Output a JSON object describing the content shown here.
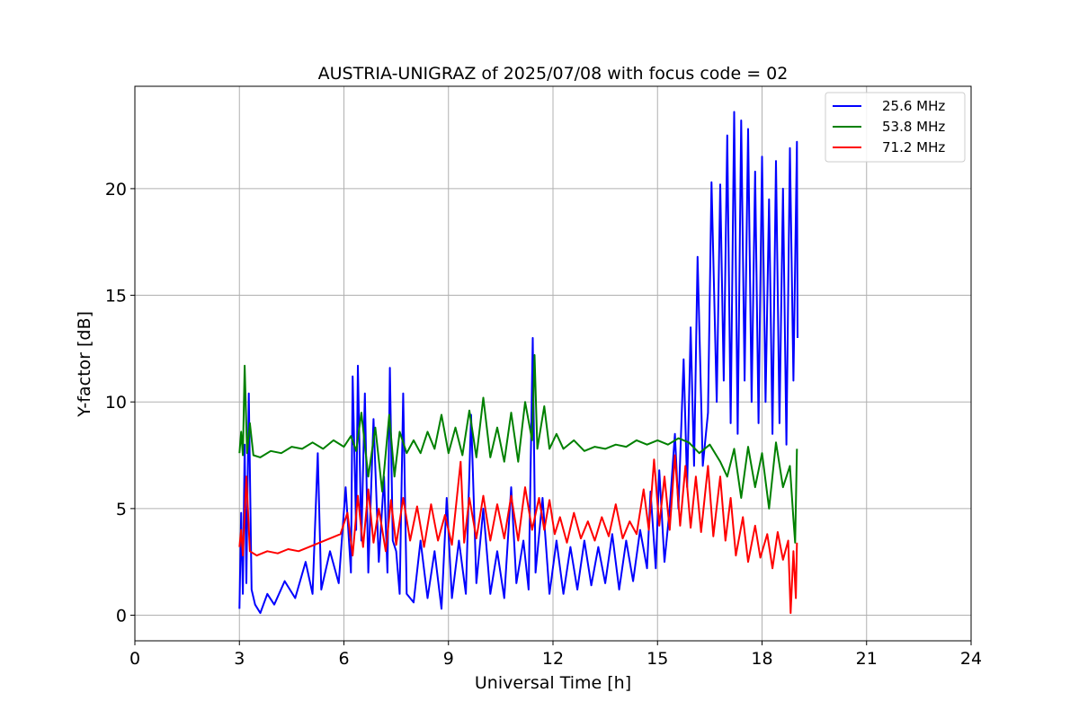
{
  "chart_data": {
    "type": "line",
    "title": "AUSTRIA-UNIGRAZ of 2025/07/08 with focus code = 02",
    "xlabel": "Universal Time [h]",
    "ylabel": "Y-factor [dB]",
    "xlim": [
      0,
      24
    ],
    "ylim": [
      -1.2,
      24.8
    ],
    "xticks": [
      0,
      3,
      6,
      9,
      12,
      15,
      18,
      21,
      24
    ],
    "yticks": [
      0,
      5,
      10,
      15,
      20
    ],
    "grid": true,
    "legend_position": "top-right",
    "series": [
      {
        "name": "25.6 MHz",
        "color": "#0000ff",
        "points": [
          [
            3.0,
            0.3
          ],
          [
            3.05,
            4.8
          ],
          [
            3.1,
            1.0
          ],
          [
            3.15,
            8.0
          ],
          [
            3.2,
            1.5
          ],
          [
            3.27,
            10.4
          ],
          [
            3.35,
            1.2
          ],
          [
            3.45,
            0.5
          ],
          [
            3.6,
            0.1
          ],
          [
            3.8,
            1.0
          ],
          [
            4.0,
            0.5
          ],
          [
            4.3,
            1.6
          ],
          [
            4.6,
            0.8
          ],
          [
            4.9,
            2.5
          ],
          [
            5.1,
            1.0
          ],
          [
            5.25,
            7.6
          ],
          [
            5.35,
            1.2
          ],
          [
            5.6,
            3.0
          ],
          [
            5.85,
            1.5
          ],
          [
            6.05,
            6.0
          ],
          [
            6.2,
            2.0
          ],
          [
            6.25,
            11.2
          ],
          [
            6.35,
            4.0
          ],
          [
            6.4,
            11.7
          ],
          [
            6.5,
            3.5
          ],
          [
            6.6,
            10.4
          ],
          [
            6.7,
            2.0
          ],
          [
            6.85,
            9.2
          ],
          [
            7.0,
            2.5
          ],
          [
            7.15,
            6.5
          ],
          [
            7.25,
            2.0
          ],
          [
            7.32,
            11.6
          ],
          [
            7.4,
            3.5
          ],
          [
            7.5,
            3.0
          ],
          [
            7.6,
            1.0
          ],
          [
            7.7,
            10.4
          ],
          [
            7.8,
            1.0
          ],
          [
            8.0,
            0.6
          ],
          [
            8.2,
            3.5
          ],
          [
            8.4,
            0.8
          ],
          [
            8.6,
            3.0
          ],
          [
            8.8,
            0.3
          ],
          [
            8.95,
            5.5
          ],
          [
            9.1,
            0.8
          ],
          [
            9.3,
            3.5
          ],
          [
            9.5,
            1.0
          ],
          [
            9.65,
            9.4
          ],
          [
            9.8,
            1.5
          ],
          [
            10.0,
            5.0
          ],
          [
            10.2,
            1.0
          ],
          [
            10.4,
            3.0
          ],
          [
            10.6,
            0.8
          ],
          [
            10.8,
            6.0
          ],
          [
            10.95,
            1.5
          ],
          [
            11.15,
            3.5
          ],
          [
            11.3,
            1.2
          ],
          [
            11.42,
            13.0
          ],
          [
            11.5,
            2.0
          ],
          [
            11.7,
            5.5
          ],
          [
            11.9,
            1.0
          ],
          [
            12.1,
            3.5
          ],
          [
            12.3,
            1.0
          ],
          [
            12.5,
            3.2
          ],
          [
            12.7,
            1.2
          ],
          [
            12.9,
            3.5
          ],
          [
            13.1,
            1.4
          ],
          [
            13.3,
            3.2
          ],
          [
            13.5,
            1.5
          ],
          [
            13.7,
            3.8
          ],
          [
            13.9,
            1.2
          ],
          [
            14.1,
            3.5
          ],
          [
            14.3,
            1.6
          ],
          [
            14.5,
            4.0
          ],
          [
            14.7,
            2.2
          ],
          [
            14.8,
            5.8
          ],
          [
            14.95,
            2.2
          ],
          [
            15.05,
            6.8
          ],
          [
            15.2,
            2.5
          ],
          [
            15.35,
            5.0
          ],
          [
            15.5,
            8.5
          ],
          [
            15.6,
            5.0
          ],
          [
            15.75,
            12.0
          ],
          [
            15.85,
            6.0
          ],
          [
            15.95,
            13.5
          ],
          [
            16.05,
            7.0
          ],
          [
            16.15,
            16.8
          ],
          [
            16.3,
            7.0
          ],
          [
            16.45,
            9.5
          ],
          [
            16.55,
            20.3
          ],
          [
            16.7,
            10.0
          ],
          [
            16.8,
            20.2
          ],
          [
            16.9,
            11.0
          ],
          [
            17.0,
            22.5
          ],
          [
            17.1,
            9.0
          ],
          [
            17.2,
            23.6
          ],
          [
            17.3,
            8.5
          ],
          [
            17.4,
            23.2
          ],
          [
            17.5,
            11.0
          ],
          [
            17.6,
            22.8
          ],
          [
            17.7,
            10.0
          ],
          [
            17.8,
            20.8
          ],
          [
            17.9,
            9.0
          ],
          [
            18.0,
            21.5
          ],
          [
            18.1,
            10.0
          ],
          [
            18.2,
            19.5
          ],
          [
            18.3,
            8.5
          ],
          [
            18.4,
            21.3
          ],
          [
            18.5,
            9.0
          ],
          [
            18.6,
            20.0
          ],
          [
            18.7,
            8.0
          ],
          [
            18.8,
            21.9
          ],
          [
            18.9,
            11.0
          ],
          [
            19.0,
            22.2
          ],
          [
            19.02,
            13.0
          ]
        ]
      },
      {
        "name": "53.8 MHz",
        "color": "#008000",
        "points": [
          [
            3.0,
            7.6
          ],
          [
            3.05,
            8.6
          ],
          [
            3.1,
            7.5
          ],
          [
            3.15,
            11.7
          ],
          [
            3.22,
            7.6
          ],
          [
            3.3,
            9.0
          ],
          [
            3.4,
            7.5
          ],
          [
            3.6,
            7.4
          ],
          [
            3.9,
            7.7
          ],
          [
            4.2,
            7.6
          ],
          [
            4.5,
            7.9
          ],
          [
            4.8,
            7.8
          ],
          [
            5.1,
            8.1
          ],
          [
            5.4,
            7.8
          ],
          [
            5.7,
            8.2
          ],
          [
            6.0,
            7.9
          ],
          [
            6.2,
            8.4
          ],
          [
            6.35,
            7.7
          ],
          [
            6.5,
            9.5
          ],
          [
            6.7,
            6.5
          ],
          [
            6.9,
            8.8
          ],
          [
            7.1,
            5.8
          ],
          [
            7.3,
            9.4
          ],
          [
            7.45,
            6.5
          ],
          [
            7.6,
            8.6
          ],
          [
            7.8,
            7.6
          ],
          [
            8.0,
            8.2
          ],
          [
            8.2,
            7.6
          ],
          [
            8.4,
            8.6
          ],
          [
            8.6,
            7.8
          ],
          [
            8.8,
            9.4
          ],
          [
            9.0,
            7.6
          ],
          [
            9.2,
            8.8
          ],
          [
            9.4,
            7.5
          ],
          [
            9.6,
            9.6
          ],
          [
            9.8,
            7.4
          ],
          [
            10.0,
            10.2
          ],
          [
            10.2,
            7.4
          ],
          [
            10.4,
            8.8
          ],
          [
            10.6,
            7.2
          ],
          [
            10.8,
            9.5
          ],
          [
            11.0,
            7.2
          ],
          [
            11.2,
            10.0
          ],
          [
            11.4,
            8.2
          ],
          [
            11.47,
            12.2
          ],
          [
            11.55,
            7.8
          ],
          [
            11.75,
            9.8
          ],
          [
            11.9,
            7.8
          ],
          [
            12.1,
            8.5
          ],
          [
            12.3,
            7.8
          ],
          [
            12.6,
            8.2
          ],
          [
            12.9,
            7.7
          ],
          [
            13.2,
            7.9
          ],
          [
            13.5,
            7.8
          ],
          [
            13.8,
            8.0
          ],
          [
            14.1,
            7.9
          ],
          [
            14.4,
            8.2
          ],
          [
            14.7,
            8.0
          ],
          [
            15.0,
            8.2
          ],
          [
            15.3,
            8.0
          ],
          [
            15.6,
            8.3
          ],
          [
            15.9,
            8.1
          ],
          [
            16.2,
            7.6
          ],
          [
            16.5,
            8.0
          ],
          [
            16.8,
            7.2
          ],
          [
            17.0,
            6.5
          ],
          [
            17.2,
            7.8
          ],
          [
            17.4,
            5.5
          ],
          [
            17.6,
            7.9
          ],
          [
            17.8,
            6.0
          ],
          [
            18.0,
            7.6
          ],
          [
            18.2,
            5.0
          ],
          [
            18.4,
            8.1
          ],
          [
            18.6,
            6.0
          ],
          [
            18.8,
            7.0
          ],
          [
            18.9,
            4.5
          ],
          [
            18.95,
            3.4
          ],
          [
            19.0,
            7.8
          ]
        ]
      },
      {
        "name": "71.2 MHz",
        "color": "#ff0000",
        "points": [
          [
            3.0,
            3.2
          ],
          [
            3.05,
            4.0
          ],
          [
            3.1,
            2.8
          ],
          [
            3.2,
            6.5
          ],
          [
            3.3,
            3.0
          ],
          [
            3.5,
            2.8
          ],
          [
            3.8,
            3.0
          ],
          [
            4.1,
            2.9
          ],
          [
            4.4,
            3.1
          ],
          [
            4.7,
            3.0
          ],
          [
            5.0,
            3.2
          ],
          [
            5.3,
            3.4
          ],
          [
            5.6,
            3.6
          ],
          [
            5.9,
            3.8
          ],
          [
            6.1,
            4.8
          ],
          [
            6.25,
            2.8
          ],
          [
            6.4,
            5.6
          ],
          [
            6.55,
            3.2
          ],
          [
            6.7,
            5.9
          ],
          [
            6.85,
            3.4
          ],
          [
            7.0,
            5.0
          ],
          [
            7.2,
            3.0
          ],
          [
            7.35,
            5.4
          ],
          [
            7.5,
            3.3
          ],
          [
            7.7,
            5.5
          ],
          [
            7.9,
            3.5
          ],
          [
            8.1,
            5.1
          ],
          [
            8.3,
            3.2
          ],
          [
            8.5,
            5.2
          ],
          [
            8.7,
            3.5
          ],
          [
            8.9,
            4.7
          ],
          [
            9.1,
            3.3
          ],
          [
            9.35,
            7.2
          ],
          [
            9.45,
            3.4
          ],
          [
            9.6,
            5.5
          ],
          [
            9.8,
            3.6
          ],
          [
            10.0,
            5.6
          ],
          [
            10.2,
            3.5
          ],
          [
            10.4,
            5.2
          ],
          [
            10.6,
            3.6
          ],
          [
            10.8,
            5.6
          ],
          [
            11.0,
            3.5
          ],
          [
            11.2,
            6.0
          ],
          [
            11.4,
            4.0
          ],
          [
            11.6,
            5.5
          ],
          [
            11.75,
            4.0
          ],
          [
            11.9,
            5.4
          ],
          [
            12.05,
            3.8
          ],
          [
            12.2,
            4.6
          ],
          [
            12.4,
            3.4
          ],
          [
            12.6,
            4.8
          ],
          [
            12.8,
            3.6
          ],
          [
            13.0,
            4.4
          ],
          [
            13.2,
            3.5
          ],
          [
            13.4,
            4.6
          ],
          [
            13.6,
            3.7
          ],
          [
            13.8,
            5.2
          ],
          [
            14.0,
            3.6
          ],
          [
            14.2,
            4.4
          ],
          [
            14.4,
            3.8
          ],
          [
            14.6,
            5.9
          ],
          [
            14.75,
            4.0
          ],
          [
            14.9,
            7.3
          ],
          [
            15.05,
            4.2
          ],
          [
            15.2,
            6.5
          ],
          [
            15.35,
            4.0
          ],
          [
            15.5,
            7.5
          ],
          [
            15.65,
            4.2
          ],
          [
            15.8,
            7.0
          ],
          [
            15.95,
            4.1
          ],
          [
            16.1,
            6.5
          ],
          [
            16.25,
            3.9
          ],
          [
            16.45,
            7.0
          ],
          [
            16.6,
            3.7
          ],
          [
            16.8,
            6.5
          ],
          [
            16.95,
            3.5
          ],
          [
            17.1,
            5.5
          ],
          [
            17.25,
            2.8
          ],
          [
            17.45,
            4.6
          ],
          [
            17.6,
            2.5
          ],
          [
            17.8,
            4.2
          ],
          [
            17.95,
            2.7
          ],
          [
            18.15,
            3.8
          ],
          [
            18.3,
            2.2
          ],
          [
            18.45,
            3.9
          ],
          [
            18.6,
            2.6
          ],
          [
            18.75,
            3.5
          ],
          [
            18.82,
            0.1
          ],
          [
            18.9,
            3.0
          ],
          [
            18.97,
            0.8
          ],
          [
            19.0,
            3.4
          ]
        ]
      }
    ]
  }
}
